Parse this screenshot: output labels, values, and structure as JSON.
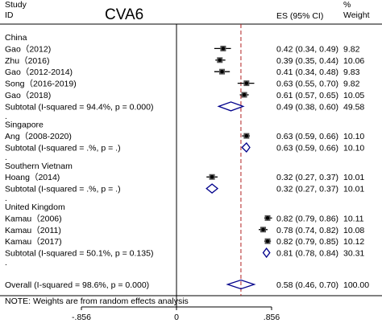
{
  "chart_data": {
    "type": "forest",
    "title": "CVA6",
    "header": {
      "study_line1": "Study",
      "study_line2": "ID",
      "es_label": "ES (95% CI)",
      "weight_line1": "%",
      "weight_line2": "Weight"
    },
    "groups": [
      {
        "name": "China",
        "studies": [
          {
            "label": "Gao（2012)",
            "es": 0.42,
            "lo": 0.34,
            "hi": 0.49,
            "es_text": "0.42 (0.34, 0.49)",
            "weight": "9.82"
          },
          {
            "label": "Zhu（2016)",
            "es": 0.39,
            "lo": 0.35,
            "hi": 0.44,
            "es_text": "0.39 (0.35, 0.44)",
            "weight": "10.06"
          },
          {
            "label": "Gao（2012-2014)",
            "es": 0.41,
            "lo": 0.34,
            "hi": 0.48,
            "es_text": "0.41 (0.34, 0.48)",
            "weight": "9.83"
          },
          {
            "label": "Song（2016-2019)",
            "es": 0.63,
            "lo": 0.55,
            "hi": 0.7,
            "es_text": "0.63 (0.55, 0.70)",
            "weight": "9.82"
          },
          {
            "label": "Gao（2018)",
            "es": 0.61,
            "lo": 0.57,
            "hi": 0.65,
            "es_text": "0.61 (0.57, 0.65)",
            "weight": "10.05"
          }
        ],
        "subtotal": {
          "label": "Subtotal  (I-squared = 94.4%, p = 0.000)",
          "es": 0.49,
          "lo": 0.38,
          "hi": 0.6,
          "es_text": "0.49 (0.38, 0.60)",
          "weight": "49.58"
        }
      },
      {
        "name": "Singapore",
        "studies": [
          {
            "label": "Ang（2008-2020)",
            "es": 0.63,
            "lo": 0.59,
            "hi": 0.66,
            "es_text": "0.63 (0.59, 0.66)",
            "weight": "10.10"
          }
        ],
        "subtotal": {
          "label": "Subtotal  (I-squared = .%, p = .)",
          "es": 0.63,
          "lo": 0.59,
          "hi": 0.66,
          "es_text": "0.63 (0.59, 0.66)",
          "weight": "10.10"
        }
      },
      {
        "name": "Southern Vietnam",
        "studies": [
          {
            "label": "Hoang（2014)",
            "es": 0.32,
            "lo": 0.27,
            "hi": 0.37,
            "es_text": "0.32 (0.27, 0.37)",
            "weight": "10.01"
          }
        ],
        "subtotal": {
          "label": "Subtotal  (I-squared = .%, p = .)",
          "es": 0.32,
          "lo": 0.27,
          "hi": 0.37,
          "es_text": "0.32 (0.27, 0.37)",
          "weight": "10.01"
        }
      },
      {
        "name": "United Kingdom",
        "studies": [
          {
            "label": "Kamau（2006)",
            "es": 0.82,
            "lo": 0.79,
            "hi": 0.86,
            "es_text": "0.82 (0.79, 0.86)",
            "weight": "10.11"
          },
          {
            "label": "Kamau（2011)",
            "es": 0.78,
            "lo": 0.74,
            "hi": 0.82,
            "es_text": "0.78 (0.74, 0.82)",
            "weight": "10.08"
          },
          {
            "label": "Kamau（2017)",
            "es": 0.82,
            "lo": 0.79,
            "hi": 0.85,
            "es_text": "0.82 (0.79, 0.85)",
            "weight": "10.12"
          }
        ],
        "subtotal": {
          "label": "Subtotal  (I-squared = 50.1%, p = 0.135)",
          "es": 0.81,
          "lo": 0.78,
          "hi": 0.84,
          "es_text": "0.81 (0.78, 0.84)",
          "weight": "30.31"
        }
      }
    ],
    "overall": {
      "label": "Overall  (I-squared = 98.6%, p = 0.000)",
      "es": 0.58,
      "lo": 0.46,
      "hi": 0.7,
      "es_text": "0.58 (0.46, 0.70)",
      "weight": "100.00"
    },
    "note": "NOTE: Weights are from random effects analysis",
    "x_ticks": [
      {
        "value": -0.856,
        "label": "-.856"
      },
      {
        "value": 0,
        "label": "0"
      },
      {
        "value": 0.856,
        "label": ".856"
      }
    ],
    "xlim": [
      -0.856,
      0.856
    ],
    "null_line": 0,
    "colors": {
      "ink": "#000000",
      "diamond": "#00008b",
      "overall_line": "#b22222"
    }
  }
}
